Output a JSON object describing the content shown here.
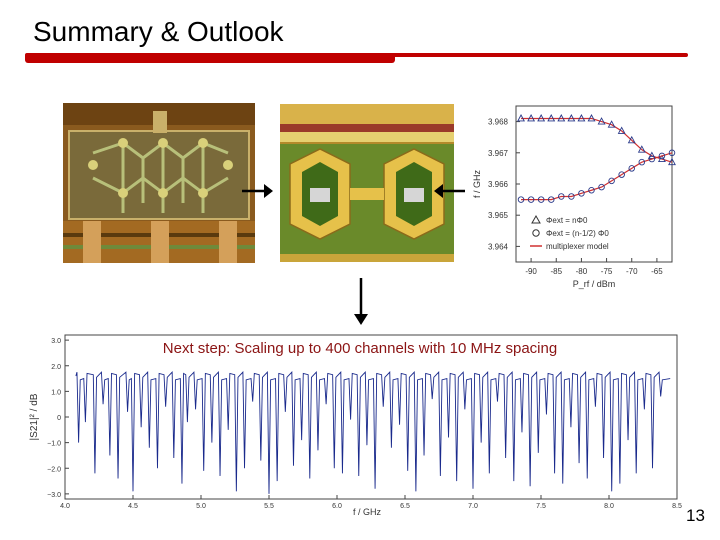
{
  "slide": {
    "title": "Summary & Outlook",
    "page_number": "13",
    "caption": "Next step: Scaling up to 400 channels with 10 MHz spacing"
  },
  "colors": {
    "accent_rule": "#c00000",
    "caption_text": "#8b1414",
    "trace_blue": "#1a2a8c",
    "fit_red": "#d03030"
  },
  "top_chart": {
    "ylabel": "f / GHz",
    "xlabel": "P_rf / dBm",
    "y_ticks": [
      "3.968",
      "3.967",
      "3.966",
      "3.965",
      "3.964"
    ],
    "x_ticks": [
      "-90",
      "-85",
      "-80",
      "-75",
      "-70",
      "-65"
    ],
    "legend": [
      {
        "marker": "triangle",
        "label": "Φext = nΦ0"
      },
      {
        "marker": "circle",
        "label": "Φext = (n-1/2) Φ0"
      },
      {
        "marker": "line",
        "label": "multiplexer model"
      }
    ]
  },
  "bottom_chart": {
    "ylabel": "|S21|² / dB",
    "xlabel": "f / GHz",
    "y_ticks": [
      "3.0",
      "2.0",
      "1.0",
      "0",
      "−1.0",
      "−2.0",
      "−3.0"
    ],
    "x_ticks": [
      "4.0",
      "4.5",
      "5.0",
      "5.5",
      "6.0",
      "6.5",
      "7.0",
      "7.5",
      "8.0",
      "8.5"
    ]
  },
  "chart_data": [
    {
      "type": "scatter",
      "xlabel": "P_rf / dBm",
      "ylabel": "f / GHz",
      "xlim": [
        -93,
        -62
      ],
      "ylim": [
        3.9635,
        3.9685
      ],
      "series": [
        {
          "name": "Φext = nΦ0",
          "x": [
            -92,
            -90,
            -88,
            -86,
            -84,
            -82,
            -80,
            -78,
            -76,
            -74,
            -72,
            -70,
            -68,
            -66,
            -64,
            -62
          ],
          "values": [
            3.9681,
            3.9681,
            3.9681,
            3.9681,
            3.9681,
            3.9681,
            3.9681,
            3.9681,
            3.968,
            3.9679,
            3.9677,
            3.9674,
            3.9671,
            3.9669,
            3.9668,
            3.9667
          ]
        },
        {
          "name": "Φext = (n-1/2) Φ0",
          "x": [
            -92,
            -90,
            -88,
            -86,
            -84,
            -82,
            -80,
            -78,
            -76,
            -74,
            -72,
            -70,
            -68,
            -66,
            -64,
            -62
          ],
          "values": [
            3.9655,
            3.9655,
            3.9655,
            3.9655,
            3.9656,
            3.9656,
            3.9657,
            3.9658,
            3.9659,
            3.9661,
            3.9663,
            3.9665,
            3.9667,
            3.9668,
            3.9669,
            3.967
          ]
        }
      ]
    },
    {
      "type": "line",
      "xlabel": "f / GHz",
      "ylabel": "|S21|² / dB",
      "xlim": [
        4.0,
        8.5
      ],
      "ylim": [
        -3.2,
        3.2
      ],
      "series": [
        {
          "name": "",
          "baseline_db": 1.6,
          "dips_ghz": [
            4.1,
            4.15,
            4.22,
            4.28,
            4.33,
            4.39,
            4.46,
            4.5,
            4.56,
            4.62,
            4.68,
            4.74,
            4.8,
            4.86,
            4.9,
            4.96,
            5.02,
            5.08,
            5.14,
            5.2,
            5.26,
            5.32,
            5.38,
            5.44,
            5.5,
            5.56,
            5.62,
            5.68,
            5.74,
            5.8,
            5.86,
            5.92,
            5.98,
            6.04,
            6.1,
            6.16,
            6.22,
            6.28,
            6.34,
            6.4,
            6.46,
            6.52,
            6.58,
            6.64,
            6.7,
            6.76,
            6.82,
            6.88,
            6.94,
            7.0,
            7.06,
            7.12,
            7.18,
            7.24,
            7.3,
            7.36,
            7.42,
            7.48,
            7.54,
            7.6,
            7.66,
            7.72,
            7.78,
            7.84,
            7.9,
            7.96,
            8.02,
            8.08,
            8.14,
            8.2,
            8.26,
            8.32,
            8.38
          ],
          "dips_depth_db": [
            -1.0,
            -0.2,
            -2.2,
            0.5,
            -1.5,
            -2.4,
            0.2,
            -2.9,
            -0.4,
            -1.2,
            -2.0,
            0.4,
            -1.6,
            -2.6,
            -0.2,
            0.3,
            -2.1,
            -1.0,
            -2.3,
            -0.5,
            -2.9,
            -2.0,
            0.6,
            -1.7,
            -3.0,
            -2.5,
            0.2,
            -1.9,
            -0.9,
            -2.4,
            -1.3,
            0.5,
            -2.0,
            -2.2,
            -0.1,
            -2.3,
            -1.1,
            -2.8,
            0.4,
            -1.2,
            -0.3,
            -2.1,
            -2.9,
            -1.5,
            0.7,
            -2.3,
            -0.8,
            -2.5,
            0.3,
            -2.8,
            -1.0,
            -2.2,
            0.6,
            -1.6,
            -2.5,
            -0.6,
            -2.7,
            -1.4,
            0.1,
            -2.2,
            -2.6,
            -0.4,
            -1.8,
            -2.4,
            0.4,
            -1.6,
            -2.9,
            -2.6,
            -0.9,
            -2.2,
            0.3,
            -2.0,
            0.8
          ]
        }
      ]
    }
  ]
}
